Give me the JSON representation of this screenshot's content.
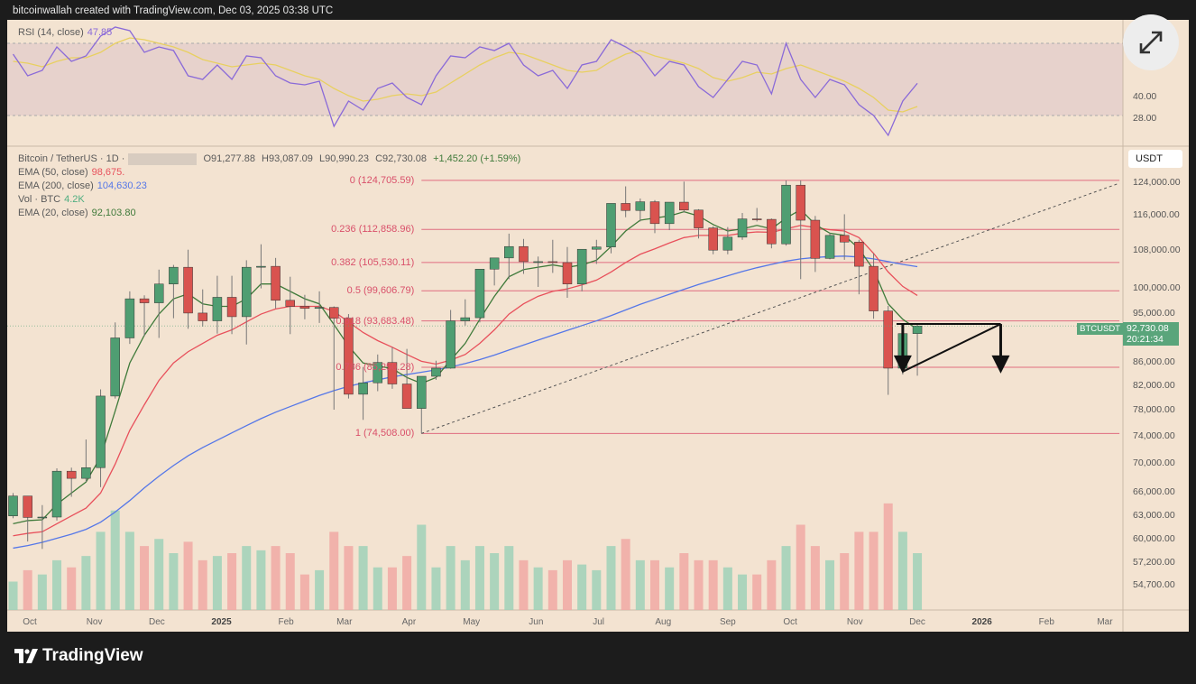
{
  "header": {
    "attribution": "bitcoinwallah created with TradingView.com, Dec 03, 2025 03:38 UTC"
  },
  "rsi_legend": {
    "label": "RSI (14, close)",
    "value": "47.85"
  },
  "legend": {
    "symbol": "Bitcoin / TetherUS · 1D ·",
    "open": "O91,277.88",
    "high": "H93,087.09",
    "low": "L90,990.23",
    "close": "C92,730.08",
    "change": "+1,452.20 (+1.59%)",
    "ema50_label": "EMA (50, close)",
    "ema50_value": "98,675.",
    "ema200_label": "EMA (200, close)",
    "ema200_value": "104,630.23",
    "vol_label": "Vol · BTC",
    "vol_value": "4.2K",
    "ema20_label": "EMA (20, close)",
    "ema20_value": "92,103.80"
  },
  "currency": "USDT",
  "price_tag": {
    "symbol": "BTCUSDT",
    "price": "92,730.08",
    "countdown": "20:21:34"
  },
  "footer": {
    "brand": "TradingView"
  },
  "colors": {
    "up": "#4f9e72",
    "down": "#d9534f",
    "ema20": "#3f7a3a",
    "ema50": "#e8505b",
    "ema200": "#5577e8",
    "fib": "#e06c80",
    "rsi": "#8a6ad8",
    "rsi_ma": "#e8d060",
    "background": "#f3e3d1"
  },
  "chart_data": {
    "type": "candlestick",
    "scale": "log",
    "ylim": [
      52000,
      130000
    ],
    "y_ticks": [
      "124,000.00",
      "116,000.00",
      "108,000.00",
      "100,000.00",
      "95,000.00",
      "86,000.00",
      "82,000.00",
      "78,000.00",
      "74,000.00",
      "70,000.00",
      "66,000.00",
      "63,000.00",
      "60,000.00",
      "57,200.00",
      "54,700.00"
    ],
    "rsi_ticks": [
      "40.00",
      "28.00"
    ],
    "x_ticks": [
      {
        "label": "Oct",
        "date": "2024-10-01"
      },
      {
        "label": "Nov",
        "date": "2024-11-01"
      },
      {
        "label": "Dec",
        "date": "2024-12-01"
      },
      {
        "label": "2025",
        "date": "2025-01-01",
        "bold": true
      },
      {
        "label": "Feb",
        "date": "2025-02-01"
      },
      {
        "label": "Mar",
        "date": "2025-03-01"
      },
      {
        "label": "Apr",
        "date": "2025-04-01"
      },
      {
        "label": "May",
        "date": "2025-05-01"
      },
      {
        "label": "Jun",
        "date": "2025-06-01"
      },
      {
        "label": "Jul",
        "date": "2025-07-01"
      },
      {
        "label": "Aug",
        "date": "2025-08-01"
      },
      {
        "label": "Sep",
        "date": "2025-09-01"
      },
      {
        "label": "Oct",
        "date": "2025-10-01"
      },
      {
        "label": "Nov",
        "date": "2025-11-01"
      },
      {
        "label": "Dec",
        "date": "2025-12-01"
      },
      {
        "label": "2026",
        "date": "2026-01-01",
        "bold": true
      },
      {
        "label": "Feb",
        "date": "2026-02-01"
      },
      {
        "label": "Mar",
        "date": "2026-03-01"
      }
    ],
    "fib_levels": [
      {
        "label": "0 (124,705.59)",
        "price": 124705.59
      },
      {
        "label": "0.236 (112,858.96)",
        "price": 112858.96
      },
      {
        "label": "0.382 (105,530.11)",
        "price": 105530.11
      },
      {
        "label": "0.5 (99,606.79)",
        "price": 99606.79
      },
      {
        "label": "0.618 (93,683.48)",
        "price": 93683.48
      },
      {
        "label": "0.786 (85,250.28)",
        "price": 85250.28
      },
      {
        "label": "1 (74,508.00)",
        "price": 74508.0
      }
    ],
    "fib_range": {
      "start": "2025-04-07",
      "end": "2026-03-08"
    },
    "trendline": {
      "from": {
        "date": "2025-04-07",
        "price": 74508
      },
      "to": {
        "date": "2026-03-08",
        "price": 124000
      }
    },
    "triangle": {
      "top_left": {
        "date": "2025-11-21",
        "price": 93100
      },
      "apex": {
        "date": "2026-01-10",
        "price": 93100
      },
      "bottom_left": {
        "date": "2025-11-24",
        "price": 84500
      }
    },
    "arrows": [
      {
        "date": "2025-11-24",
        "from": 93100,
        "to": 84500
      },
      {
        "date": "2026-01-10",
        "from": 93100,
        "to": 84500
      }
    ],
    "columns": [
      "date",
      "open",
      "high",
      "low",
      "close",
      "volume_k",
      "ema20",
      "ema50",
      "ema200",
      "rsi",
      "rsi_ma"
    ],
    "candles": [
      [
        "2024-09-23",
        63000,
        66000,
        62700,
        65600,
        20,
        62000,
        60500,
        59000,
        64,
        60
      ],
      [
        "2024-09-30",
        65600,
        65600,
        59800,
        62800,
        28,
        62400,
        60800,
        59300,
        52,
        59
      ],
      [
        "2024-10-07",
        62800,
        64400,
        58900,
        62850,
        25,
        62500,
        61000,
        59700,
        55,
        57
      ],
      [
        "2024-10-14",
        62850,
        69400,
        62400,
        69000,
        35,
        64500,
        62000,
        60200,
        68,
        60
      ],
      [
        "2024-10-21",
        69000,
        69500,
        65500,
        68000,
        30,
        66000,
        63000,
        60700,
        60,
        62
      ],
      [
        "2024-10-28",
        68000,
        73600,
        67500,
        69500,
        38,
        67500,
        64000,
        61300,
        63,
        62
      ],
      [
        "2024-11-04",
        69500,
        81500,
        66800,
        80400,
        55,
        71000,
        66000,
        62200,
        74,
        65
      ],
      [
        "2024-11-11",
        80400,
        93400,
        80000,
        90500,
        70,
        78000,
        70000,
        63500,
        79,
        70
      ],
      [
        "2024-11-18",
        90500,
        99500,
        89400,
        98000,
        55,
        86000,
        75000,
        65000,
        77,
        73
      ],
      [
        "2024-11-25",
        98000,
        98700,
        90800,
        97200,
        45,
        91000,
        79000,
        66700,
        65,
        72
      ],
      [
        "2024-12-02",
        97200,
        104000,
        90500,
        101000,
        50,
        95000,
        83000,
        68300,
        68,
        70
      ],
      [
        "2024-12-09",
        101000,
        105000,
        94200,
        104500,
        40,
        98000,
        86000,
        69800,
        66,
        68
      ],
      [
        "2024-12-16",
        104500,
        108300,
        92200,
        95200,
        48,
        99000,
        88000,
        71200,
        52,
        65
      ],
      [
        "2024-12-23",
        95200,
        99900,
        92600,
        93700,
        35,
        97000,
        89500,
        72400,
        50,
        61
      ],
      [
        "2024-12-30",
        93700,
        102700,
        91300,
        98300,
        38,
        96500,
        91000,
        73500,
        58,
        59
      ],
      [
        "2025-01-06",
        98300,
        102700,
        91200,
        94500,
        40,
        96500,
        92000,
        74600,
        50,
        57
      ],
      [
        "2025-01-13",
        94500,
        106000,
        89300,
        104500,
        45,
        98000,
        93500,
        75700,
        63,
        58
      ],
      [
        "2025-01-20",
        104500,
        109500,
        100100,
        104700,
        42,
        101000,
        95000,
        76800,
        62,
        59
      ],
      [
        "2025-01-27",
        104700,
        106500,
        96100,
        97700,
        45,
        101000,
        96000,
        77800,
        52,
        58
      ],
      [
        "2025-02-03",
        97700,
        102500,
        91200,
        96500,
        40,
        99500,
        96500,
        78700,
        48,
        55
      ],
      [
        "2025-02-10",
        96500,
        98800,
        94000,
        96100,
        25,
        98000,
        96500,
        79600,
        47,
        52
      ],
      [
        "2025-02-17",
        96100,
        99500,
        93300,
        96300,
        28,
        97000,
        96500,
        80500,
        49,
        50
      ],
      [
        "2025-02-24",
        96300,
        96500,
        78200,
        94200,
        55,
        93000,
        95500,
        81300,
        24,
        45
      ],
      [
        "2025-03-03",
        94200,
        95000,
        80000,
        80700,
        45,
        89000,
        93500,
        82000,
        38,
        41
      ],
      [
        "2025-03-10",
        80700,
        85300,
        76600,
        82600,
        45,
        86000,
        91500,
        82600,
        33,
        38
      ],
      [
        "2025-03-17",
        82600,
        87500,
        81200,
        86100,
        30,
        85500,
        90000,
        83100,
        45,
        39
      ],
      [
        "2025-03-24",
        86100,
        88800,
        81600,
        82400,
        30,
        85000,
        88800,
        83600,
        48,
        41
      ],
      [
        "2025-03-31",
        82400,
        88500,
        81200,
        78400,
        38,
        83500,
        87500,
        84000,
        40,
        42
      ],
      [
        "2025-04-07",
        78400,
        83500,
        74500,
        83700,
        60,
        82500,
        86300,
        84400,
        36,
        41
      ],
      [
        "2025-04-14",
        83700,
        86400,
        83100,
        85100,
        30,
        83500,
        85800,
        84800,
        52,
        43
      ],
      [
        "2025-04-21",
        85100,
        95800,
        85000,
        93700,
        45,
        86500,
        86500,
        85300,
        63,
        48
      ],
      [
        "2025-04-28",
        93700,
        97900,
        92800,
        94300,
        35,
        89500,
        87500,
        85900,
        62,
        53
      ],
      [
        "2025-05-05",
        94300,
        104100,
        93400,
        104100,
        45,
        94000,
        89500,
        86600,
        68,
        58
      ],
      [
        "2025-05-12",
        104100,
        105800,
        100700,
        106500,
        40,
        98500,
        92000,
        87400,
        66,
        62
      ],
      [
        "2025-05-19",
        106500,
        111900,
        102000,
        109000,
        45,
        102500,
        95000,
        88300,
        70,
        65
      ],
      [
        "2025-05-26",
        109000,
        110700,
        103100,
        105700,
        35,
        104000,
        97000,
        89200,
        58,
        64
      ],
      [
        "2025-06-02",
        105700,
        106800,
        100400,
        105700,
        30,
        104500,
        98500,
        90100,
        52,
        61
      ],
      [
        "2025-06-09",
        105700,
        110500,
        103300,
        105500,
        28,
        105000,
        99500,
        91000,
        55,
        58
      ],
      [
        "2025-06-16",
        105500,
        108900,
        98200,
        101000,
        35,
        104500,
        100000,
        91900,
        45,
        55
      ],
      [
        "2025-06-23",
        101000,
        108400,
        99500,
        108400,
        32,
        105000,
        100800,
        92800,
        58,
        54
      ],
      [
        "2025-06-30",
        108400,
        110500,
        105200,
        108900,
        28,
        106000,
        101800,
        93700,
        60,
        55
      ],
      [
        "2025-07-07",
        108900,
        119000,
        107500,
        119000,
        45,
        109000,
        103500,
        94700,
        72,
        60
      ],
      [
        "2025-07-14",
        119000,
        123200,
        115700,
        117300,
        50,
        112500,
        105500,
        95800,
        68,
        64
      ],
      [
        "2025-07-21",
        117300,
        120200,
        114700,
        119400,
        35,
        115000,
        107300,
        96900,
        63,
        66
      ],
      [
        "2025-07-28",
        119400,
        119800,
        112000,
        114200,
        35,
        115500,
        108500,
        97900,
        52,
        63
      ],
      [
        "2025-08-04",
        114200,
        119300,
        112700,
        119300,
        30,
        116000,
        109800,
        98900,
        60,
        61
      ],
      [
        "2025-08-11",
        119300,
        124400,
        116800,
        117400,
        40,
        117000,
        111000,
        99900,
        58,
        59
      ],
      [
        "2025-08-18",
        117400,
        117600,
        110800,
        113200,
        35,
        116000,
        111500,
        100900,
        46,
        56
      ],
      [
        "2025-08-25",
        113200,
        113600,
        107300,
        108200,
        35,
        114000,
        111500,
        101800,
        40,
        51
      ],
      [
        "2025-09-01",
        108200,
        113400,
        107300,
        111100,
        30,
        112500,
        111500,
        102700,
        50,
        49
      ],
      [
        "2025-09-08",
        111100,
        116700,
        110500,
        115300,
        25,
        113000,
        112000,
        103600,
        60,
        51
      ],
      [
        "2025-09-15",
        115300,
        117900,
        114700,
        115200,
        25,
        113800,
        112300,
        104400,
        58,
        54
      ],
      [
        "2025-09-22",
        115200,
        115400,
        108600,
        109600,
        35,
        113000,
        112200,
        105100,
        42,
        53
      ],
      [
        "2025-09-29",
        109600,
        124700,
        109200,
        123500,
        45,
        115500,
        113000,
        105800,
        70,
        56
      ],
      [
        "2025-10-06",
        123500,
        124700,
        102000,
        115000,
        60,
        117500,
        113800,
        106300,
        50,
        58
      ],
      [
        "2025-10-13",
        115000,
        116000,
        103500,
        106400,
        45,
        114000,
        113300,
        106600,
        40,
        55
      ],
      [
        "2025-10-20",
        106400,
        112000,
        106200,
        111500,
        35,
        112000,
        112800,
        106800,
        50,
        52
      ],
      [
        "2025-10-27",
        111500,
        116400,
        106100,
        110000,
        40,
        111500,
        112500,
        106900,
        47,
        49
      ],
      [
        "2025-11-03",
        110000,
        110500,
        98900,
        104700,
        55,
        108500,
        111000,
        106700,
        36,
        45
      ],
      [
        "2025-11-10",
        104700,
        107500,
        94100,
        95600,
        55,
        104000,
        107500,
        106300,
        30,
        40
      ],
      [
        "2025-11-17",
        95600,
        96600,
        80600,
        85100,
        75,
        97000,
        103500,
        105700,
        19,
        33
      ],
      [
        "2025-11-24",
        85100,
        93100,
        84000,
        91300,
        55,
        94000,
        100500,
        105100,
        38,
        32
      ],
      [
        "2025-12-01",
        91300,
        93100,
        83800,
        92730,
        40,
        92104,
        98675,
        104630,
        47.85,
        35
      ]
    ]
  }
}
